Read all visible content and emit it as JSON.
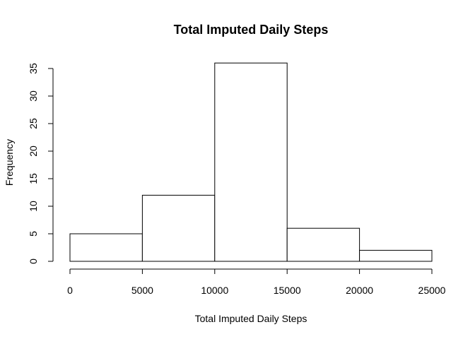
{
  "chart_data": {
    "type": "bar",
    "title": "Total Imputed Daily Steps",
    "xlabel": "Total Imputed Daily Steps",
    "ylabel": "Frequency",
    "bins": [
      {
        "start": 0,
        "end": 5000,
        "count": 5
      },
      {
        "start": 5000,
        "end": 10000,
        "count": 12
      },
      {
        "start": 10000,
        "end": 15000,
        "count": 36
      },
      {
        "start": 15000,
        "end": 20000,
        "count": 6
      },
      {
        "start": 20000,
        "end": 25000,
        "count": 2
      }
    ],
    "xlim": [
      0,
      25000
    ],
    "ylim": [
      0,
      35
    ],
    "xticks": [
      "0",
      "5000",
      "10000",
      "15000",
      "20000",
      "25000"
    ],
    "yticks": [
      "0",
      "5",
      "10",
      "15",
      "20",
      "25",
      "30",
      "35"
    ],
    "grid": false,
    "colors": {
      "bar_fill": "#ffffff",
      "bar_stroke": "#000000"
    }
  }
}
